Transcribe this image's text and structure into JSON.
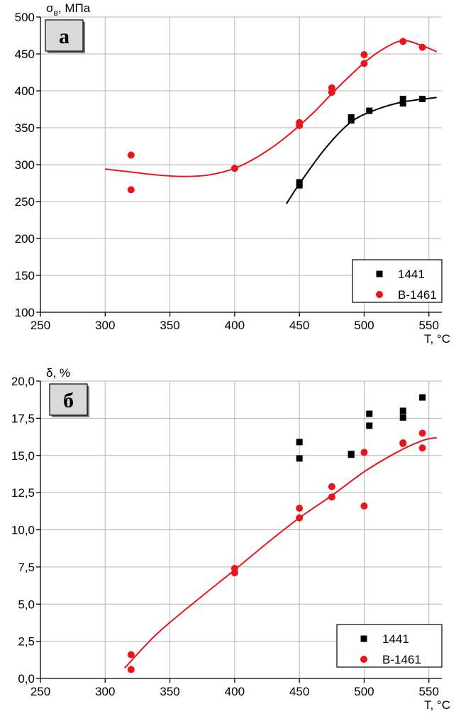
{
  "chart_data": [
    {
      "type": "scatter",
      "panel_label": "а",
      "ylabel_main": "σ",
      "ylabel_sub": "в",
      "ylabel_rest": ", МПа",
      "xlabel": "T, °C",
      "xlim": [
        250,
        560
      ],
      "ylim": [
        100,
        500
      ],
      "xticks": [
        250,
        300,
        350,
        400,
        450,
        500,
        550
      ],
      "yticks": [
        100,
        150,
        200,
        250,
        300,
        350,
        400,
        450,
        500
      ],
      "grid": true,
      "legend_position": "bottom-right",
      "series": [
        {
          "name": "1441",
          "marker": "square",
          "color": "#000000",
          "points": [
            [
              450,
              276
            ],
            [
              450,
              272
            ],
            [
              490,
              364
            ],
            [
              490,
              360
            ],
            [
              504,
              373
            ],
            [
              530,
              389
            ],
            [
              530,
              383
            ],
            [
              545,
              389
            ]
          ],
          "fit": [
            [
              440,
              247
            ],
            [
              450,
              274
            ],
            [
              470,
              322
            ],
            [
              490,
              358
            ],
            [
              510,
              375
            ],
            [
              530,
              385
            ],
            [
              556,
              391
            ]
          ]
        },
        {
          "name": "В-1461",
          "marker": "circle",
          "color": "#e8151b",
          "points": [
            [
              320,
              313
            ],
            [
              320,
              266
            ],
            [
              400,
              295
            ],
            [
              450,
              357
            ],
            [
              450,
              353
            ],
            [
              475,
              404
            ],
            [
              475,
              398
            ],
            [
              500,
              449
            ],
            [
              500,
              437
            ],
            [
              530,
              467
            ],
            [
              545,
              459
            ]
          ],
          "fit": [
            [
              300,
              294
            ],
            [
              320,
              290
            ],
            [
              340,
              286
            ],
            [
              360,
              284
            ],
            [
              380,
              286
            ],
            [
              400,
              295
            ],
            [
              420,
              313
            ],
            [
              440,
              338
            ],
            [
              460,
              369
            ],
            [
              480,
              405
            ],
            [
              500,
              438
            ],
            [
              515,
              457
            ],
            [
              530,
              468
            ],
            [
              545,
              461
            ],
            [
              556,
              453
            ]
          ]
        }
      ]
    },
    {
      "type": "scatter",
      "panel_label": "б",
      "ylabel_main": "δ, %",
      "xlabel": "T, °C",
      "xlim": [
        250,
        560
      ],
      "ylim": [
        0,
        20
      ],
      "xticks": [
        250,
        300,
        350,
        400,
        450,
        500,
        550
      ],
      "yticks": [
        0,
        2.5,
        5,
        7.5,
        10,
        12.5,
        15,
        17.5,
        20
      ],
      "ytick_labels": [
        "0,0",
        "2,5",
        "5,0",
        "7,5",
        "10,0",
        "12,5",
        "15,0",
        "17,5",
        "20,0"
      ],
      "grid": true,
      "legend_position": "bottom-right",
      "series": [
        {
          "name": "1441",
          "marker": "square",
          "color": "#000000",
          "points": [
            [
              450,
              15.9
            ],
            [
              450,
              14.8
            ],
            [
              490,
              15.1
            ],
            [
              490,
              15.05
            ],
            [
              504,
              17.8
            ],
            [
              504,
              17.0
            ],
            [
              530,
              18.0
            ],
            [
              530,
              17.55
            ],
            [
              545,
              18.9
            ]
          ],
          "fit": []
        },
        {
          "name": "В-1461",
          "marker": "circle",
          "color": "#e8151b",
          "points": [
            [
              320,
              1.6
            ],
            [
              320,
              0.6
            ],
            [
              400,
              7.4
            ],
            [
              400,
              7.1
            ],
            [
              450,
              11.45
            ],
            [
              450,
              10.8
            ],
            [
              475,
              12.9
            ],
            [
              475,
              12.2
            ],
            [
              500,
              15.2
            ],
            [
              500,
              11.6
            ],
            [
              530,
              15.8
            ],
            [
              530,
              15.85
            ],
            [
              545,
              16.5
            ],
            [
              545,
              15.5
            ]
          ],
          "fit": [
            [
              315,
              0.7
            ],
            [
              340,
              3.0
            ],
            [
              370,
              5.2
            ],
            [
              400,
              7.3
            ],
            [
              425,
              9.1
            ],
            [
              450,
              10.8
            ],
            [
              475,
              12.3
            ],
            [
              500,
              13.9
            ],
            [
              525,
              15.2
            ],
            [
              545,
              16.0
            ],
            [
              556,
              16.2
            ]
          ]
        }
      ]
    }
  ]
}
